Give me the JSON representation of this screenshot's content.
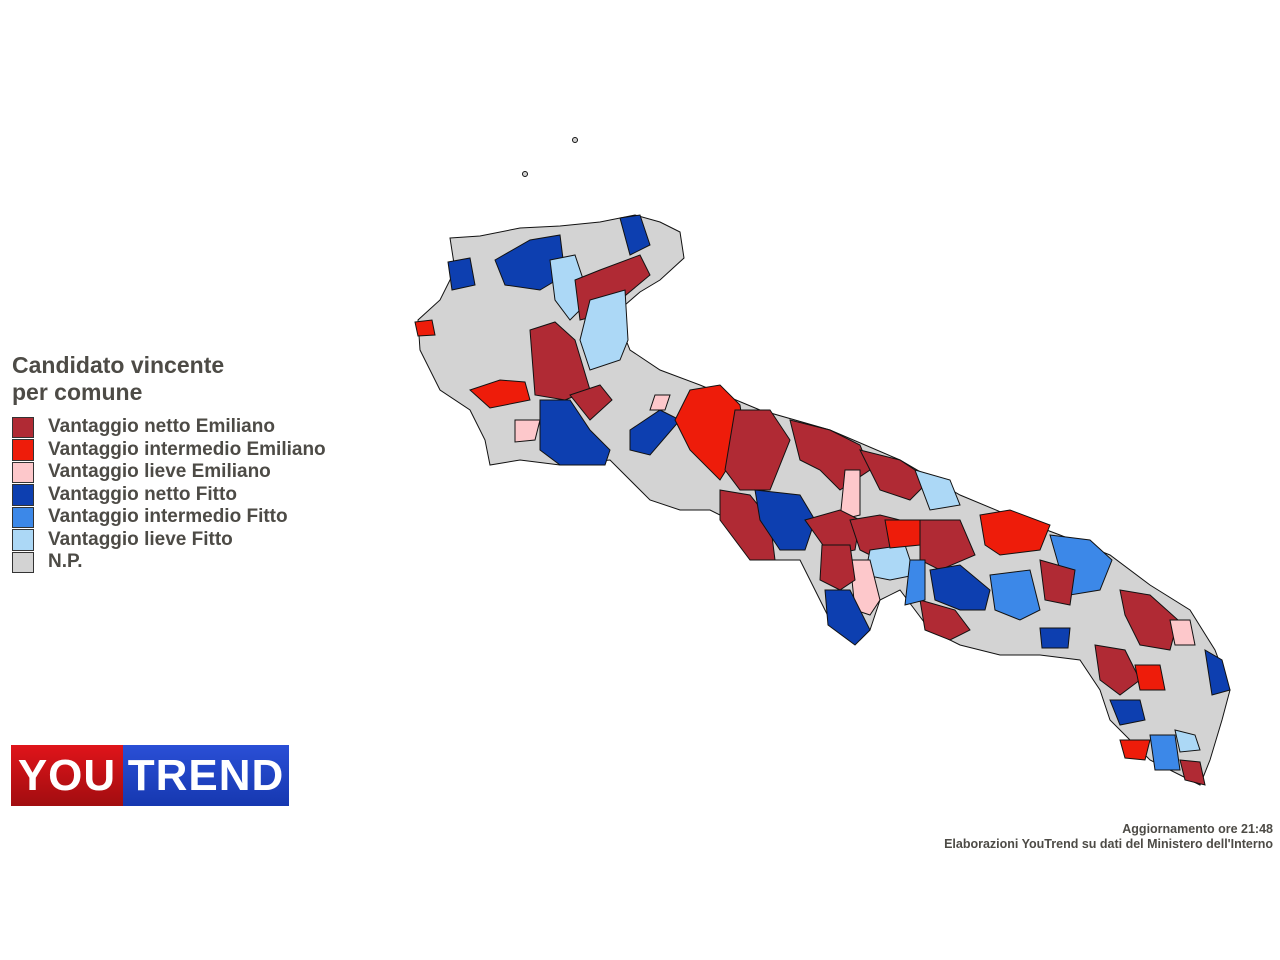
{
  "legend": {
    "title_line1": "Candidato vincente",
    "title_line2": "per comune",
    "items": [
      {
        "label": "Vantaggio netto Emiliano",
        "color": "#b02a34"
      },
      {
        "label": "Vantaggio intermedio Emiliano",
        "color": "#ee1c0a"
      },
      {
        "label": "Vantaggio lieve Emiliano",
        "color": "#fdc8cb"
      },
      {
        "label": "Vantaggio netto Fitto",
        "color": "#0d3fb0"
      },
      {
        "label": "Vantaggio intermedio Fitto",
        "color": "#3c88e8"
      },
      {
        "label": "Vantaggio lieve Fitto",
        "color": "#acd8f6"
      },
      {
        "label": "N.P.",
        "color": "#d3d3d3"
      }
    ]
  },
  "logo": {
    "part1": "YOU",
    "part2": "TREND"
  },
  "footer": {
    "update": "Aggiornamento ore 21:48",
    "source": "Elaborazioni YouTrend su dati del Ministero dell'Interno"
  }
}
